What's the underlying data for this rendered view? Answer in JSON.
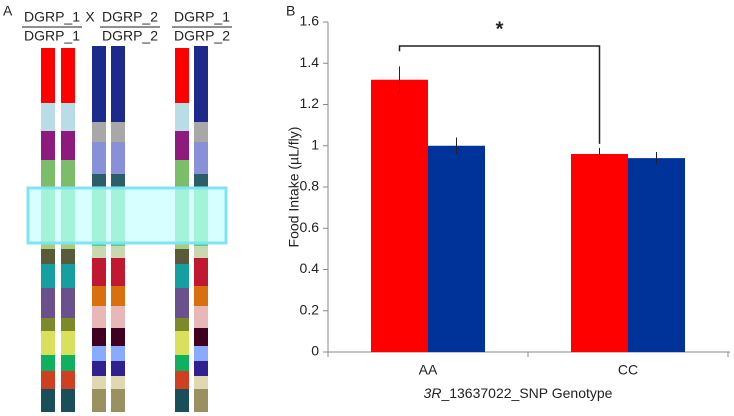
{
  "panel_labels": [
    "A",
    "B"
  ],
  "panel_a": {
    "cross_symbol": "X",
    "parents": [
      {
        "top": "DGRP_1",
        "bottom": "DGRP_1"
      },
      {
        "top": "DGRP_2",
        "bottom": "DGRP_2"
      },
      {
        "top": "DGRP_1",
        "bottom": "DGRP_2"
      }
    ]
  },
  "chart_data": {
    "type": "bar",
    "ylabel": "Food Intake (µL/fly)",
    "xlabel_parts": [
      "3R",
      "_13637022_SNP Genotype"
    ],
    "categories": [
      "AA",
      "CC"
    ],
    "series": [
      {
        "color": "#ff0000",
        "values": [
          1.32,
          0.96
        ],
        "errors": [
          0.065,
          0.03
        ]
      },
      {
        "color": "#003399",
        "values": [
          1.0,
          0.94
        ],
        "errors": [
          0.04,
          0.03
        ]
      }
    ],
    "ylim": [
      0,
      1.6
    ],
    "yticks": [
      0,
      0.2,
      0.4,
      0.6,
      0.8,
      1,
      1.2,
      1.4,
      1.6
    ],
    "grid": false,
    "annotation": "*"
  }
}
